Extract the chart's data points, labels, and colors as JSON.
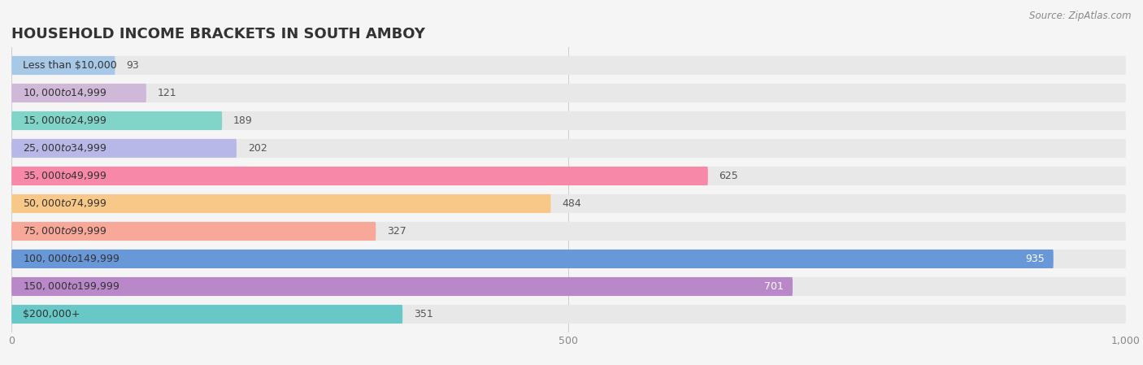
{
  "title": "HOUSEHOLD INCOME BRACKETS IN SOUTH AMBOY",
  "source": "Source: ZipAtlas.com",
  "categories": [
    "Less than $10,000",
    "$10,000 to $14,999",
    "$15,000 to $24,999",
    "$25,000 to $34,999",
    "$35,000 to $49,999",
    "$50,000 to $74,999",
    "$75,000 to $99,999",
    "$100,000 to $149,999",
    "$150,000 to $199,999",
    "$200,000+"
  ],
  "values": [
    93,
    121,
    189,
    202,
    625,
    484,
    327,
    935,
    701,
    351
  ],
  "colors": [
    "#a8c8e8",
    "#d0b8d8",
    "#80d4c8",
    "#b8b8e8",
    "#f888a8",
    "#f8c888",
    "#f8a898",
    "#6898d8",
    "#b888c8",
    "#68c8c8"
  ],
  "xlim": [
    0,
    1000
  ],
  "xticks": [
    0,
    500,
    1000
  ],
  "background_color": "#f5f5f5",
  "bar_background": "#e8e8e8",
  "title_fontsize": 13,
  "label_fontsize": 9,
  "value_fontsize": 9
}
